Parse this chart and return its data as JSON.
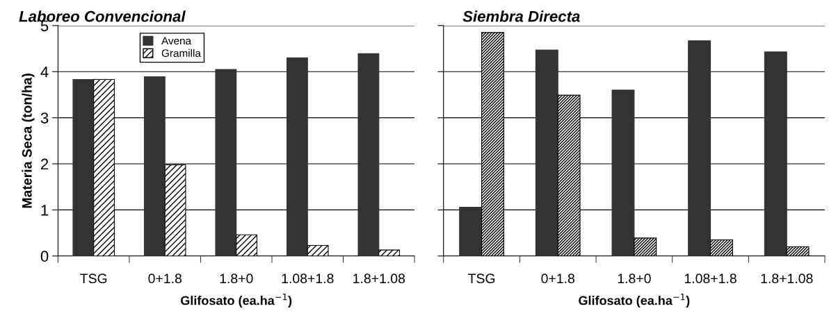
{
  "chart_data": [
    {
      "type": "bar",
      "title": "Laboreo Convencional",
      "xlabel": "Glifosato (ea.ha$^{−1}$)",
      "ylabel": "Materia Seca (ton/ha)",
      "categories": [
        "TSG",
        "0+1.8",
        "1.8+0",
        "1.08+1.8",
        "1.8+1.08"
      ],
      "series": [
        {
          "name": "Avena",
          "color": "#333333",
          "values": [
            3.83,
            3.89,
            4.05,
            4.3,
            4.39
          ]
        },
        {
          "name": "Gramilla",
          "color": "#000000",
          "values": [
            3.83,
            1.98,
            0.46,
            0.23,
            0.13
          ]
        }
      ],
      "ylim": [
        0,
        5
      ],
      "yticks": [
        0,
        1,
        2,
        3,
        4,
        5
      ],
      "grid": "y",
      "legend": "top center"
    },
    {
      "type": "bar",
      "title": "Siembra Directa",
      "xlabel": "Glifosato (ea.ha$^{−1}$)",
      "categories": [
        "TSG",
        "0+1.8",
        "1.8+0",
        "1.08+1.8",
        "1.8+1.08"
      ],
      "series": [
        {
          "color": "#333333",
          "values": [
            1.06,
            4.47,
            3.6,
            4.67,
            4.43
          ]
        },
        {
          "color": "#000000",
          "values": [
            4.85,
            3.49,
            0.39,
            0.35,
            0.2
          ]
        }
      ],
      "ylim": [
        0,
        5
      ],
      "yticks": [
        0,
        1,
        2,
        3,
        4,
        5
      ],
      "grid": "y",
      "tick_labels": "x"
    }
  ]
}
